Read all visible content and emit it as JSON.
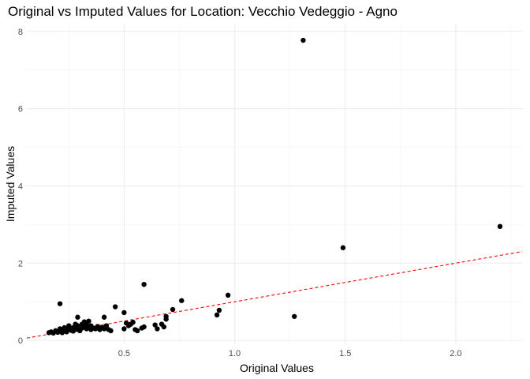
{
  "chart_data": {
    "type": "scatter",
    "title": "Original vs Imputed Values for Location: Vecchio Vedeggio - Agno",
    "xlabel": "Original Values",
    "ylabel": "Imputed Values",
    "xlim": [
      0.06,
      2.3
    ],
    "ylim": [
      -0.1,
      8.2
    ],
    "x_ticks": [
      0.5,
      1.0,
      1.5,
      2.0
    ],
    "x_tick_labels": [
      "0.5",
      "1.0",
      "1.5",
      "2.0"
    ],
    "y_ticks": [
      0,
      2,
      4,
      6,
      8
    ],
    "y_tick_labels": [
      "0",
      "2",
      "4",
      "6",
      "8"
    ],
    "grid": true,
    "reference_line": {
      "slope": 1,
      "intercept": 0,
      "color": "#ff0000",
      "style": "dashed"
    },
    "point_color": "#000000",
    "series": [
      {
        "x": [
          0.16,
          0.17,
          0.18,
          0.19,
          0.2,
          0.21,
          0.22,
          0.22,
          0.23,
          0.23,
          0.24,
          0.25,
          0.25,
          0.26,
          0.27,
          0.27,
          0.28,
          0.28,
          0.29,
          0.29,
          0.3,
          0.3,
          0.31,
          0.31,
          0.32,
          0.32,
          0.33,
          0.33,
          0.34,
          0.34,
          0.35,
          0.35,
          0.36,
          0.37,
          0.38,
          0.39,
          0.4,
          0.41,
          0.42,
          0.43,
          0.44,
          0.21,
          0.29,
          0.33,
          0.41,
          0.46,
          0.5,
          0.5,
          0.51,
          0.52,
          0.53,
          0.54,
          0.55,
          0.56,
          0.58,
          0.59,
          0.59,
          0.64,
          0.65,
          0.67,
          0.68,
          0.69,
          0.69,
          0.72,
          0.76,
          0.92,
          0.93,
          0.97,
          1.27,
          1.31,
          1.49,
          2.2
        ],
        "y": [
          0.2,
          0.22,
          0.19,
          0.25,
          0.21,
          0.3,
          0.2,
          0.28,
          0.25,
          0.33,
          0.22,
          0.3,
          0.38,
          0.26,
          0.33,
          0.24,
          0.35,
          0.42,
          0.28,
          0.38,
          0.3,
          0.25,
          0.42,
          0.32,
          0.36,
          0.48,
          0.3,
          0.4,
          0.35,
          0.5,
          0.28,
          0.38,
          0.32,
          0.3,
          0.36,
          0.28,
          0.34,
          0.3,
          0.38,
          0.28,
          0.25,
          0.95,
          0.6,
          0.45,
          0.6,
          0.87,
          0.72,
          0.3,
          0.45,
          0.38,
          0.42,
          0.47,
          0.28,
          0.25,
          0.32,
          0.35,
          1.45,
          0.4,
          0.3,
          0.42,
          0.35,
          0.55,
          0.62,
          0.8,
          1.03,
          0.66,
          0.78,
          1.17,
          0.62,
          7.77,
          2.4,
          2.95
        ]
      }
    ]
  }
}
